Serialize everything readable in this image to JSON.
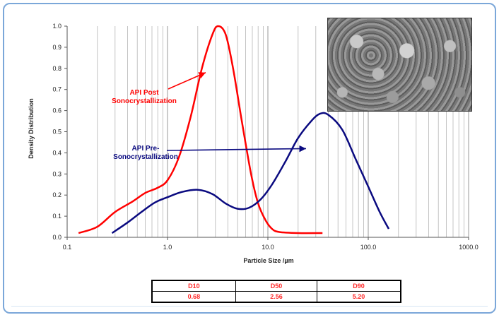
{
  "chart_data": {
    "type": "line",
    "xscale": "log",
    "xlim": [
      0.1,
      1000
    ],
    "ylim": [
      0,
      1.0
    ],
    "xlabel": "Particle Size /µm",
    "ylabel": "Density Distribution",
    "grid": "vertical",
    "x_ticks": [
      "0.1",
      "1.0",
      "10.0",
      "100.0",
      "1000.0"
    ],
    "y_ticks": [
      "0.0",
      "0.1",
      "0.2",
      "0.3",
      "0.4",
      "0.5",
      "0.6",
      "0.7",
      "0.8",
      "0.9",
      "1.0"
    ],
    "series": [
      {
        "name": "API Post Sonocrystallization",
        "color": "#ff0000",
        "points": [
          [
            0.13,
            0.02
          ],
          [
            0.2,
            0.05
          ],
          [
            0.3,
            0.12
          ],
          [
            0.45,
            0.17
          ],
          [
            0.6,
            0.21
          ],
          [
            0.8,
            0.235
          ],
          [
            1.0,
            0.27
          ],
          [
            1.3,
            0.38
          ],
          [
            1.7,
            0.57
          ],
          [
            2.2,
            0.8
          ],
          [
            2.8,
            0.96
          ],
          [
            3.2,
            1.0
          ],
          [
            3.8,
            0.96
          ],
          [
            4.5,
            0.8
          ],
          [
            5.5,
            0.55
          ],
          [
            6.8,
            0.3
          ],
          [
            8.0,
            0.16
          ],
          [
            9.5,
            0.08
          ],
          [
            11,
            0.04
          ],
          [
            13,
            0.025
          ],
          [
            20,
            0.02
          ],
          [
            35,
            0.02
          ]
        ]
      },
      {
        "name": "API Pre-Sonocrystallization",
        "color": "#0a0a80",
        "points": [
          [
            0.28,
            0.02
          ],
          [
            0.4,
            0.07
          ],
          [
            0.55,
            0.12
          ],
          [
            0.75,
            0.165
          ],
          [
            1.0,
            0.19
          ],
          [
            1.4,
            0.215
          ],
          [
            2.0,
            0.225
          ],
          [
            2.8,
            0.205
          ],
          [
            3.8,
            0.16
          ],
          [
            5.0,
            0.135
          ],
          [
            6.5,
            0.14
          ],
          [
            8.5,
            0.18
          ],
          [
            11,
            0.25
          ],
          [
            15,
            0.36
          ],
          [
            20,
            0.47
          ],
          [
            27,
            0.55
          ],
          [
            33,
            0.585
          ],
          [
            40,
            0.58
          ],
          [
            55,
            0.51
          ],
          [
            75,
            0.37
          ],
          [
            100,
            0.24
          ],
          [
            130,
            0.12
          ],
          [
            160,
            0.04
          ]
        ]
      }
    ],
    "annotations": [
      {
        "lines": [
          "API Post",
          "Sonocrystallization"
        ],
        "color": "#ff0000",
        "arrow_to": [
          2.4,
          0.78
        ]
      },
      {
        "lines": [
          "API Pre-",
          "Sonocrystallization"
        ],
        "color": "#0a0a80",
        "arrow_to": [
          24,
          0.42
        ]
      }
    ],
    "table": {
      "headers": [
        "D10",
        "D50",
        "D90"
      ],
      "values": [
        "0.68",
        "2.56",
        "5.20"
      ]
    }
  }
}
